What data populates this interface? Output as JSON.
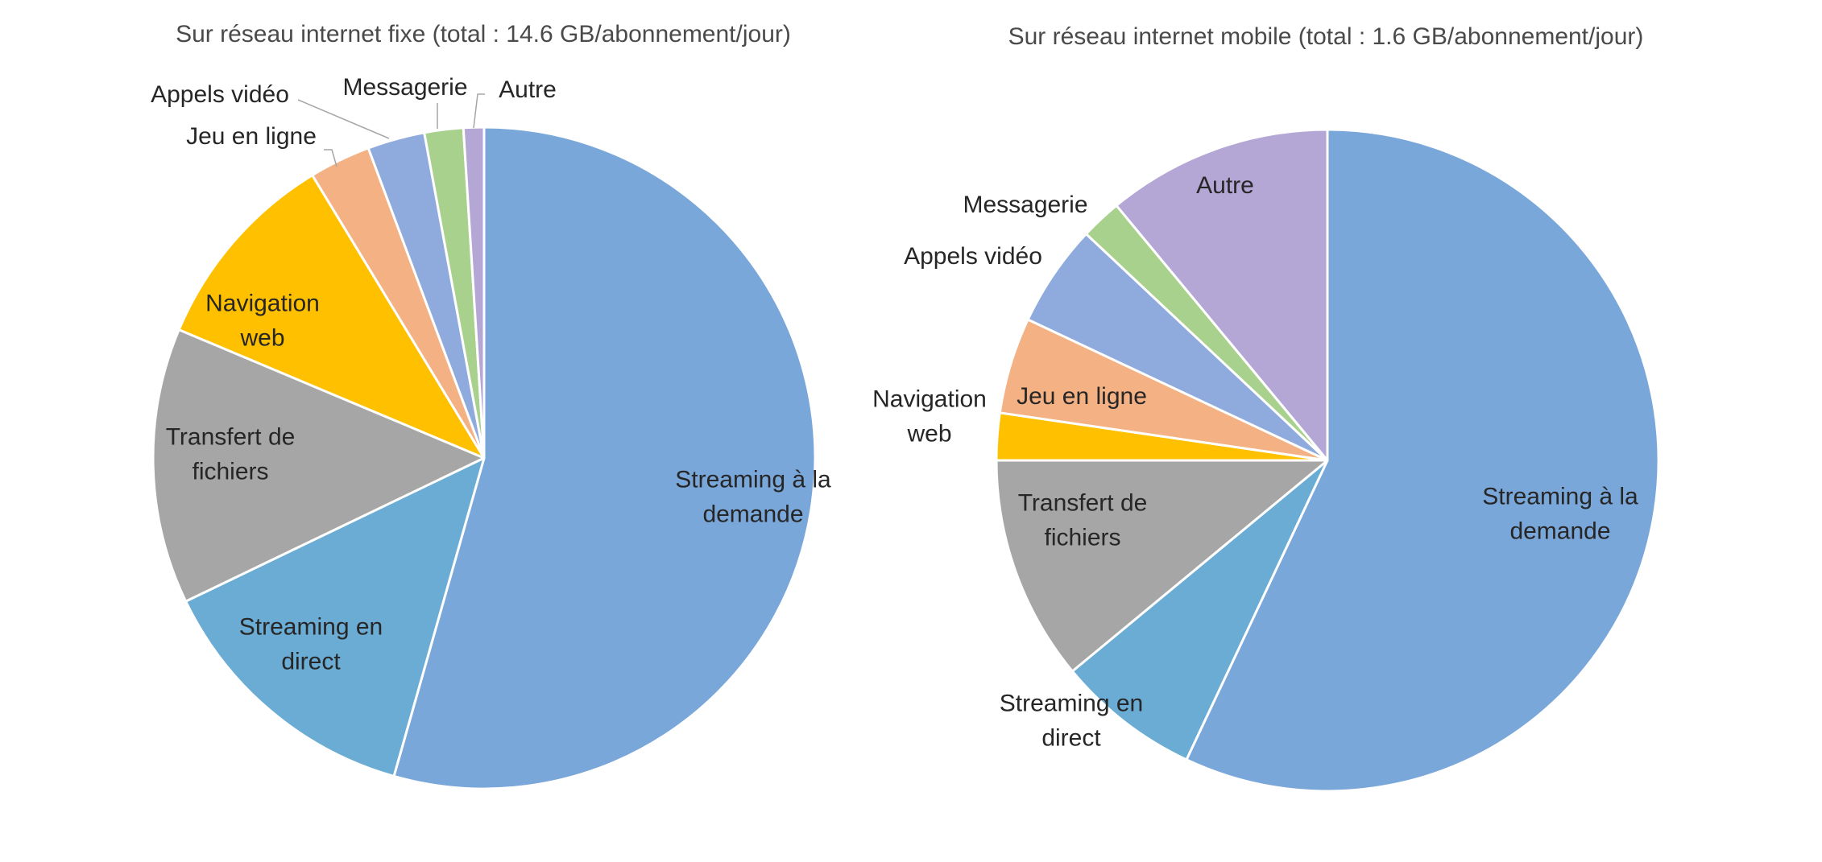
{
  "chart_data": [
    {
      "type": "pie",
      "title": "Sur réseau internet fixe (total : 14.6 GB/abonnement/jour)",
      "slices": [
        {
          "label": "Streaming à la demande",
          "lines": [
            "Streaming à la",
            "demande"
          ],
          "value": 54.5,
          "color": "#7AA7DA"
        },
        {
          "label": "Streaming en direct",
          "lines": [
            "Streaming en",
            "direct"
          ],
          "value": 13.5,
          "color": "#6BACD4"
        },
        {
          "label": "Transfert de fichiers",
          "lines": [
            "Transfert de",
            "fichiers"
          ],
          "value": 13.5,
          "color": "#A6A6A6"
        },
        {
          "label": "Navigation web",
          "lines": [
            "Navigation",
            "web"
          ],
          "value": 10.0,
          "color": "#FFC000"
        },
        {
          "label": "Jeu en ligne",
          "lines": [
            "Jeu en ligne"
          ],
          "value": 3.0,
          "color": "#F4B183"
        },
        {
          "label": "Appels vidéo",
          "lines": [
            "Appels vidéo"
          ],
          "value": 2.8,
          "color": "#8FAADC"
        },
        {
          "label": "Messagerie",
          "lines": [
            "Messagerie"
          ],
          "value": 1.9,
          "color": "#A9D18E"
        },
        {
          "label": "Autre",
          "lines": [
            "Autre"
          ],
          "value": 1.0,
          "color": "#B4A7D6"
        }
      ]
    },
    {
      "type": "pie",
      "title": "Sur réseau internet mobile (total : 1.6 GB/abonnement/jour)",
      "slices": [
        {
          "label": "Streaming à la demande",
          "lines": [
            "Streaming à la",
            "demande"
          ],
          "value": 57.0,
          "color": "#7AA7DA"
        },
        {
          "label": "Streaming en direct",
          "lines": [
            "Streaming en",
            "direct"
          ],
          "value": 7.0,
          "color": "#6BACD4"
        },
        {
          "label": "Transfert de fichiers",
          "lines": [
            "Transfert de",
            "fichiers"
          ],
          "value": 11.0,
          "color": "#A6A6A6"
        },
        {
          "label": "Navigation web",
          "lines": [
            "Navigation",
            "web"
          ],
          "value": 2.3,
          "color": "#FFC000"
        },
        {
          "label": "Jeu en ligne",
          "lines": [
            "Jeu en ligne"
          ],
          "value": 4.7,
          "color": "#F4B183"
        },
        {
          "label": "Appels vidéo",
          "lines": [
            "Appels vidéo"
          ],
          "value": 5.0,
          "color": "#8FAADC"
        },
        {
          "label": "Messagerie",
          "lines": [
            "Messagerie"
          ],
          "value": 2.0,
          "color": "#A9D18E"
        },
        {
          "label": "Autre",
          "lines": [
            "Autre"
          ],
          "value": 11.0,
          "color": "#B4A7D6"
        }
      ]
    }
  ]
}
